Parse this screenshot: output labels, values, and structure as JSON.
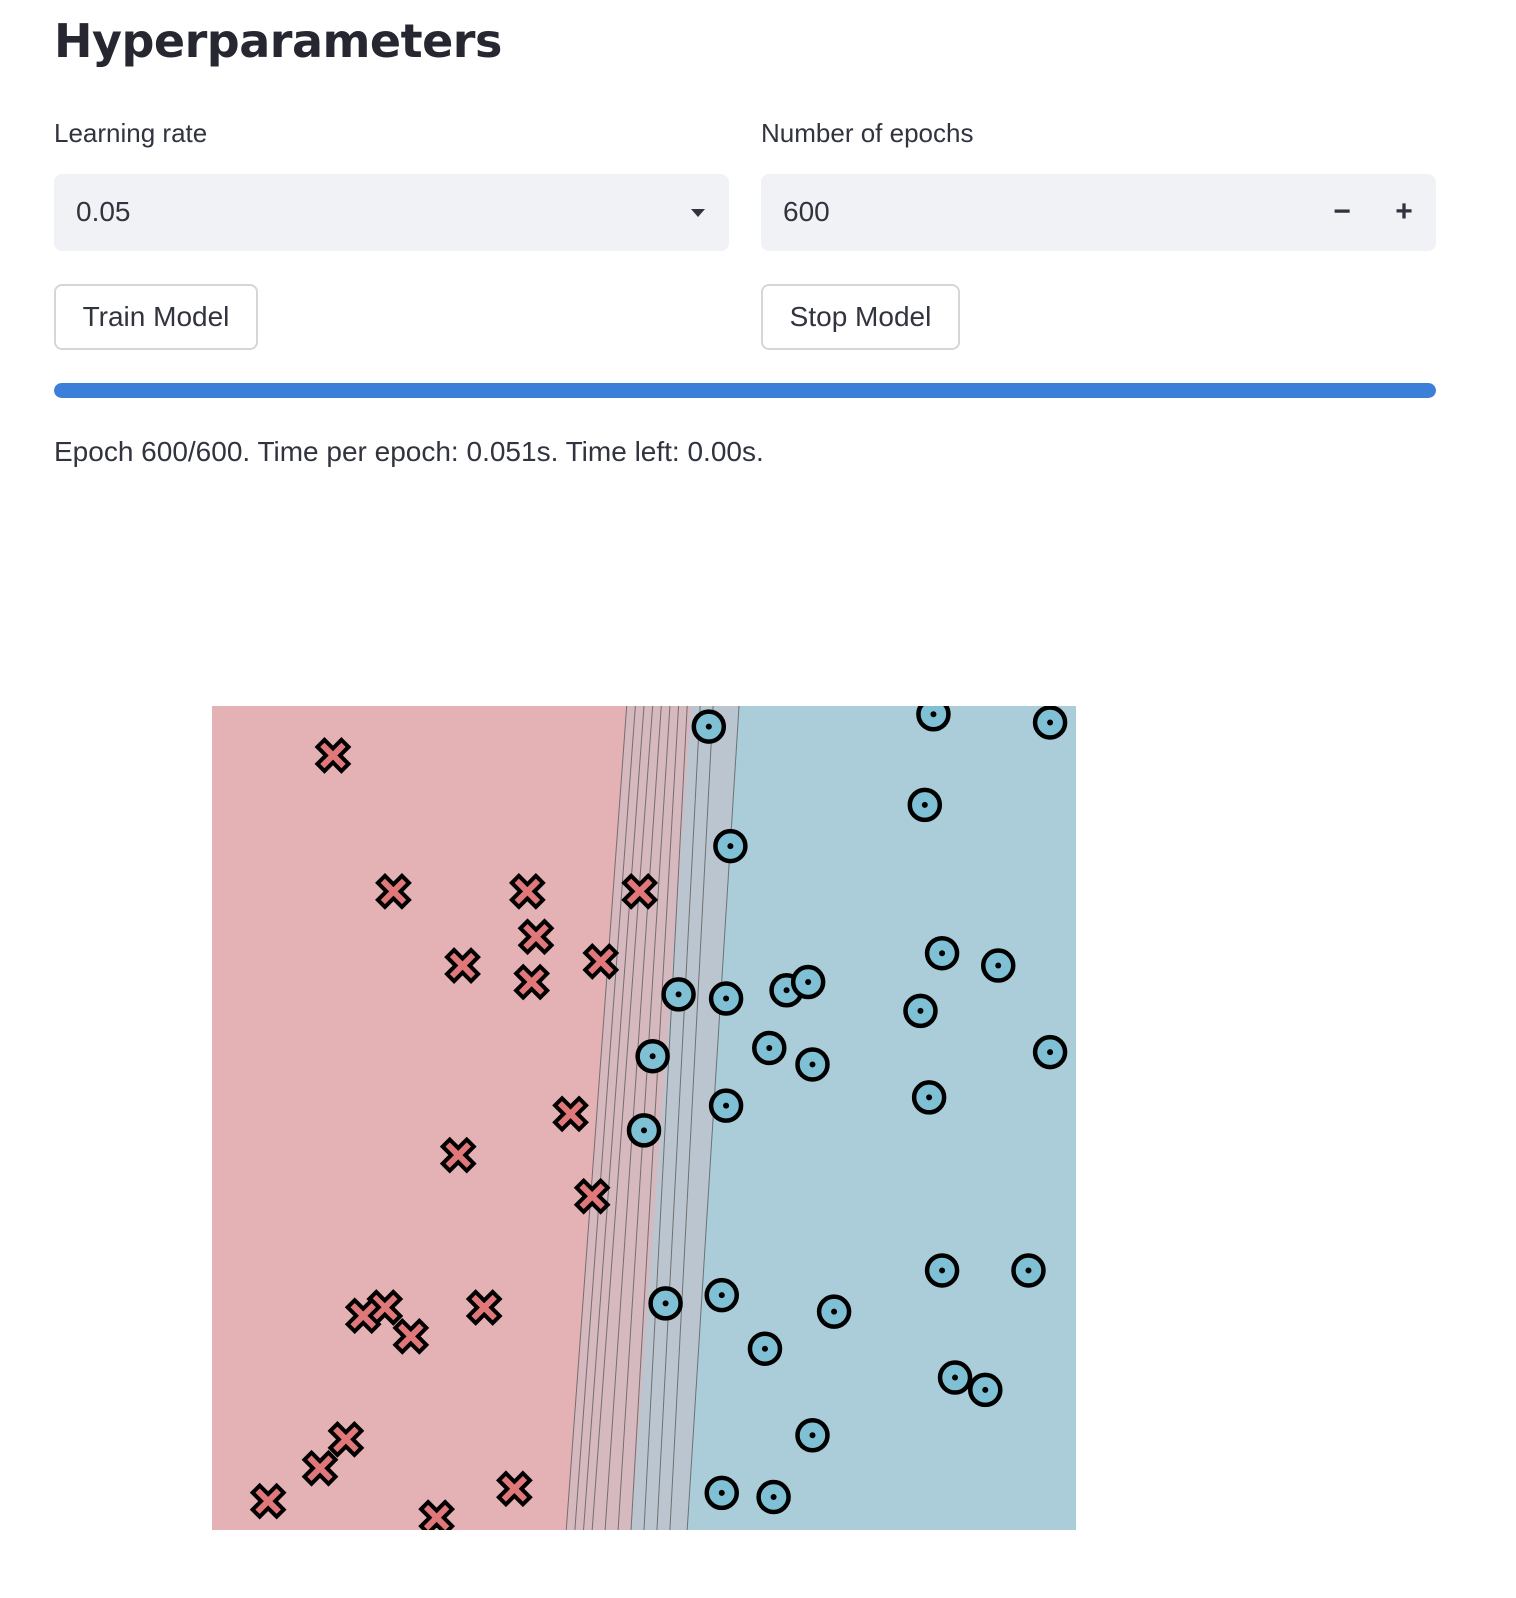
{
  "header": {
    "title": "Hyperparameters"
  },
  "learning_rate": {
    "label": "Learning rate",
    "value": "0.05"
  },
  "epochs": {
    "label": "Number of epochs",
    "value": "600",
    "minus": "−",
    "plus": "+"
  },
  "buttons": {
    "train": "Train Model",
    "stop": "Stop Model"
  },
  "progress": {
    "fraction": 1.0
  },
  "status": {
    "text": "Epoch 600/600. Time per epoch: 0.051s. Time left: 0.00s."
  },
  "colors": {
    "class_x_region": "#e4b2b4",
    "class_o_region": "#aacdd9",
    "accent": "#3b7fd9"
  },
  "chart_data": {
    "type": "scatter",
    "title": "",
    "xlabel": "",
    "ylabel": "",
    "grid": false,
    "xlim": [
      0,
      100
    ],
    "ylim": [
      0,
      100
    ],
    "series": [
      {
        "marker": "x",
        "color": "#e0787a",
        "points": [
          [
            14,
            94
          ],
          [
            21,
            77.5
          ],
          [
            36.5,
            77.5
          ],
          [
            49.5,
            77.5
          ],
          [
            37.5,
            72
          ],
          [
            45,
            69
          ],
          [
            29,
            68.5
          ],
          [
            37,
            66.5
          ],
          [
            41.5,
            50.5
          ],
          [
            28.5,
            45.5
          ],
          [
            44,
            40.5
          ],
          [
            20,
            27
          ],
          [
            17.5,
            26
          ],
          [
            31.5,
            27
          ],
          [
            23.012,
            23.5
          ],
          [
            15.5,
            11
          ],
          [
            12.5,
            7.5
          ],
          [
            6.5,
            3.5
          ],
          [
            35,
            5
          ],
          [
            26,
            1.5
          ]
        ]
      },
      {
        "marker": "o",
        "color": "#7fc0d5",
        "points": [
          [
            57.5,
            97.5
          ],
          [
            83.5,
            99
          ],
          [
            97,
            98
          ],
          [
            82.5,
            88
          ],
          [
            60,
            83
          ],
          [
            84.5,
            70
          ],
          [
            91,
            68.5
          ],
          [
            82,
            63
          ],
          [
            54,
            65
          ],
          [
            59.5,
            64.5
          ],
          [
            66.5,
            65.5
          ],
          [
            69,
            66.5
          ],
          [
            51,
            57.5
          ],
          [
            64.5,
            58.5
          ],
          [
            69.5,
            56.5
          ],
          [
            97,
            58
          ],
          [
            59.5,
            51.5
          ],
          [
            83,
            52.5
          ],
          [
            50,
            48.5
          ],
          [
            84.5,
            31.5
          ],
          [
            94.5,
            31.5
          ],
          [
            52.5,
            27.5
          ],
          [
            59,
            28.5
          ],
          [
            72,
            26.5
          ],
          [
            64,
            22
          ],
          [
            86,
            18.5
          ],
          [
            89.5,
            17
          ],
          [
            69.5,
            11.5
          ],
          [
            59,
            4.5
          ],
          [
            65,
            4
          ]
        ]
      }
    ],
    "decision_boundary_lines": [
      {
        "x_top": 48.0,
        "x_bottom": 41.0
      },
      {
        "x_top": 49.0,
        "x_bottom": 42.0
      },
      {
        "x_top": 50.0,
        "x_bottom": 43.0
      },
      {
        "x_top": 51.0,
        "x_bottom": 44.0
      },
      {
        "x_top": 52.0,
        "x_bottom": 45.5
      },
      {
        "x_top": 53.0,
        "x_bottom": 47.0
      },
      {
        "x_top": 54.0,
        "x_bottom": 48.5
      },
      {
        "x_top": 55.0,
        "x_bottom": 50.0
      },
      {
        "x_top": 56.5,
        "x_bottom": 51.5
      },
      {
        "x_top": 58.0,
        "x_bottom": 53.0
      },
      {
        "x_top": 61.0,
        "x_bottom": 55.0
      }
    ],
    "boundary_x_top": 55.5,
    "boundary_x_bottom": 48.5
  }
}
